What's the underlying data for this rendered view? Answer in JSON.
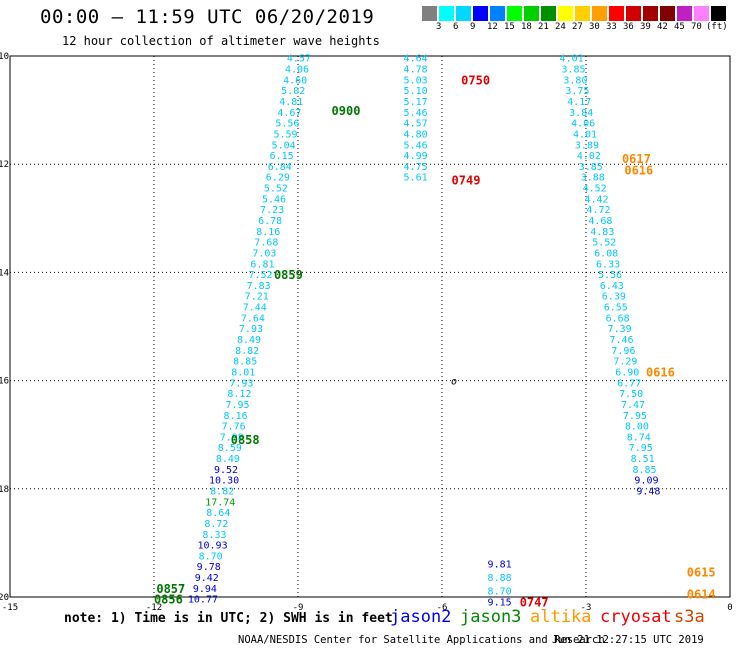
{
  "header": {
    "title": "00:00 – 11:59 UTC 06/20/2019",
    "subtitle": "12 hour collection of altimeter wave heights"
  },
  "scale": {
    "unit_label": "(ft)",
    "colors": [
      "#808080",
      "#00ffff",
      "#00d8ff",
      "#0000ff",
      "#0082ff",
      "#00ff00",
      "#00d000",
      "#009000",
      "#ffff00",
      "#ffd000",
      "#ffa000",
      "#ff0000",
      "#d00000",
      "#a00000",
      "#800000",
      "#c020c0",
      "#ff80ff",
      "#000000"
    ],
    "ticks": [
      "3",
      "6",
      "9",
      "12",
      "15",
      "18",
      "21",
      "24",
      "27",
      "30",
      "33",
      "36",
      "39",
      "42",
      "45",
      "70"
    ]
  },
  "note": "note: 1) Time is in UTC; 2) SWH is in feet",
  "satellites": [
    {
      "name": "jason2",
      "color": "#0000ee"
    },
    {
      "name": "jason3",
      "color": "#008800"
    },
    {
      "name": "altika",
      "color": "#ff9900"
    },
    {
      "name": "cryosat",
      "color": "#ee0000"
    },
    {
      "name": "s3a",
      "color": "#cc4400"
    }
  ],
  "footer": "NOAA/NESDIS Center for Satellite Applications and Research",
  "timestamp": "Jun 21 12:27:15 UTC 2019",
  "colors": {
    "cyan": "#00c8ff",
    "blue": "#0000cc",
    "green": "#007800",
    "lightgreen": "#009a00",
    "red": "#e00000",
    "orange": "#ff8800"
  },
  "chart_data": {
    "type": "scatter",
    "xlim": [
      -15,
      0
    ],
    "ylim": [
      -20,
      -10
    ],
    "xticks": [
      "-15",
      "-12",
      "-9",
      "-6",
      "-3",
      "0"
    ],
    "yticks": [
      "-10",
      "-12",
      "-14",
      "-16",
      "-18",
      "-20"
    ],
    "grid": true,
    "marker_label": "o",
    "marker_point": {
      "lon": -5.75,
      "lat": -16.0
    },
    "tracks": [
      {
        "id": "track-west",
        "points": [
          {
            "lon": -8.98,
            "lat": -10.05,
            "v": "4.57",
            "c": "cyan"
          },
          {
            "lon": -9.02,
            "lat": -10.25,
            "v": "4.06",
            "c": "cyan"
          },
          {
            "lon": -9.06,
            "lat": -10.45,
            "v": "4.60",
            "c": "cyan"
          },
          {
            "lon": -9.1,
            "lat": -10.65,
            "v": "5.02",
            "c": "cyan"
          },
          {
            "lon": -9.14,
            "lat": -10.85,
            "v": "4.81",
            "c": "cyan"
          },
          {
            "lon": -9.18,
            "lat": -11.05,
            "v": "4.67",
            "c": "cyan"
          },
          {
            "lon": -9.22,
            "lat": -11.25,
            "v": "5.56",
            "c": "cyan"
          },
          {
            "lon": -9.26,
            "lat": -11.45,
            "v": "5.59",
            "c": "cyan"
          },
          {
            "lon": -9.3,
            "lat": -11.65,
            "v": "5.04",
            "c": "cyan"
          },
          {
            "lon": -9.34,
            "lat": -11.85,
            "v": "6.15",
            "c": "cyan"
          },
          {
            "lon": -9.38,
            "lat": -12.05,
            "v": "6.84",
            "c": "cyan"
          },
          {
            "lon": -9.42,
            "lat": -12.25,
            "v": "6.29",
            "c": "cyan"
          },
          {
            "lon": -9.46,
            "lat": -12.45,
            "v": "5.52",
            "c": "cyan"
          },
          {
            "lon": -9.5,
            "lat": -12.65,
            "v": "5.46",
            "c": "cyan"
          },
          {
            "lon": -9.54,
            "lat": -12.85,
            "v": "7.23",
            "c": "cyan"
          },
          {
            "lon": -9.58,
            "lat": -13.05,
            "v": "6.78",
            "c": "cyan"
          },
          {
            "lon": -9.62,
            "lat": -13.25,
            "v": "8.16",
            "c": "cyan"
          },
          {
            "lon": -9.66,
            "lat": -13.45,
            "v": "7.68",
            "c": "cyan"
          },
          {
            "lon": -9.7,
            "lat": -13.65,
            "v": "7.03",
            "c": "cyan"
          },
          {
            "lon": -9.74,
            "lat": -13.85,
            "v": "6.81",
            "c": "cyan"
          },
          {
            "lon": -9.78,
            "lat": -14.05,
            "v": "7.52",
            "c": "cyan"
          },
          {
            "lon": -9.82,
            "lat": -14.25,
            "v": "7.83",
            "c": "cyan"
          },
          {
            "lon": -9.86,
            "lat": -14.45,
            "v": "7.21",
            "c": "cyan"
          },
          {
            "lon": -9.9,
            "lat": -14.65,
            "v": "7.44",
            "c": "cyan"
          },
          {
            "lon": -9.94,
            "lat": -14.85,
            "v": "7.64",
            "c": "cyan"
          },
          {
            "lon": -9.98,
            "lat": -15.05,
            "v": "7.93",
            "c": "cyan"
          },
          {
            "lon": -10.02,
            "lat": -15.25,
            "v": "8.49",
            "c": "cyan"
          },
          {
            "lon": -10.06,
            "lat": -15.45,
            "v": "8.82",
            "c": "cyan"
          },
          {
            "lon": -10.1,
            "lat": -15.65,
            "v": "8.85",
            "c": "cyan"
          },
          {
            "lon": -10.14,
            "lat": -15.85,
            "v": "8.01",
            "c": "cyan"
          },
          {
            "lon": -10.18,
            "lat": -16.05,
            "v": "7.93",
            "c": "cyan"
          },
          {
            "lon": -10.22,
            "lat": -16.25,
            "v": "8.12",
            "c": "cyan"
          },
          {
            "lon": -10.26,
            "lat": -16.45,
            "v": "7.95",
            "c": "cyan"
          },
          {
            "lon": -10.3,
            "lat": -16.65,
            "v": "8.16",
            "c": "cyan"
          },
          {
            "lon": -10.34,
            "lat": -16.85,
            "v": "7.76",
            "c": "cyan"
          },
          {
            "lon": -10.38,
            "lat": -17.05,
            "v": "7.98",
            "c": "cyan"
          },
          {
            "lon": -10.42,
            "lat": -17.25,
            "v": "8.59",
            "c": "cyan"
          },
          {
            "lon": -10.46,
            "lat": -17.45,
            "v": "8.49",
            "c": "cyan"
          },
          {
            "lon": -10.5,
            "lat": -17.65,
            "v": "9.52",
            "c": "blue"
          },
          {
            "lon": -10.54,
            "lat": -17.85,
            "v": "10.30",
            "c": "blue"
          },
          {
            "lon": -10.58,
            "lat": -18.05,
            "v": "8.82",
            "c": "cyan"
          },
          {
            "lon": -10.62,
            "lat": -18.25,
            "v": "17.74",
            "c": "lightgreen"
          },
          {
            "lon": -10.66,
            "lat": -18.45,
            "v": "8.64",
            "c": "cyan"
          },
          {
            "lon": -10.7,
            "lat": -18.65,
            "v": "8.72",
            "c": "cyan"
          },
          {
            "lon": -10.74,
            "lat": -18.85,
            "v": "8.33",
            "c": "cyan"
          },
          {
            "lon": -10.78,
            "lat": -19.05,
            "v": "10.93",
            "c": "blue"
          },
          {
            "lon": -10.82,
            "lat": -19.25,
            "v": "8.70",
            "c": "cyan"
          },
          {
            "lon": -10.86,
            "lat": -19.45,
            "v": "9.78",
            "c": "blue"
          },
          {
            "lon": -10.9,
            "lat": -19.65,
            "v": "9.42",
            "c": "blue"
          },
          {
            "lon": -10.94,
            "lat": -19.85,
            "v": "9.94",
            "c": "blue"
          },
          {
            "lon": -10.98,
            "lat": -20.05,
            "v": "10.77",
            "c": "blue"
          }
        ],
        "time_labels": [
          {
            "lon": -8.0,
            "lat": -11.02,
            "t": "0900",
            "c": "green"
          },
          {
            "lon": -9.2,
            "lat": -14.05,
            "t": "0859",
            "c": "green"
          },
          {
            "lon": -10.1,
            "lat": -17.1,
            "t": "0858",
            "c": "green"
          },
          {
            "lon": -11.65,
            "lat": -19.85,
            "t": "0857",
            "c": "green"
          },
          {
            "lon": -11.7,
            "lat": -20.05,
            "t": "0856",
            "c": "green"
          }
        ]
      },
      {
        "id": "track-middle",
        "points": [
          {
            "lon": -6.55,
            "lat": -10.05,
            "v": "4.64",
            "c": "cyan"
          },
          {
            "lon": -6.55,
            "lat": -10.25,
            "v": "4.78",
            "c": "cyan"
          },
          {
            "lon": -6.55,
            "lat": -10.45,
            "v": "5.03",
            "c": "cyan"
          },
          {
            "lon": -6.55,
            "lat": -10.65,
            "v": "5.10",
            "c": "cyan"
          },
          {
            "lon": -6.55,
            "lat": -10.85,
            "v": "5.17",
            "c": "cyan"
          },
          {
            "lon": -6.55,
            "lat": -11.05,
            "v": "5.46",
            "c": "cyan"
          },
          {
            "lon": -6.55,
            "lat": -11.25,
            "v": "4.57",
            "c": "cyan"
          },
          {
            "lon": -6.55,
            "lat": -11.45,
            "v": "4.80",
            "c": "cyan"
          },
          {
            "lon": -6.55,
            "lat": -11.65,
            "v": "5.46",
            "c": "cyan"
          },
          {
            "lon": -6.55,
            "lat": -11.85,
            "v": "4.99",
            "c": "cyan"
          },
          {
            "lon": -6.55,
            "lat": -12.05,
            "v": "4.75",
            "c": "cyan"
          },
          {
            "lon": -6.55,
            "lat": -12.25,
            "v": "5.61",
            "c": "cyan"
          }
        ],
        "time_labels": [
          {
            "lon": -5.3,
            "lat": -10.45,
            "t": "0750",
            "c": "red"
          },
          {
            "lon": -5.5,
            "lat": -12.3,
            "t": "0749",
            "c": "red"
          }
        ]
      },
      {
        "id": "track-middle-south",
        "points": [
          {
            "lon": -4.8,
            "lat": -19.4,
            "v": "9.81",
            "c": "blue"
          },
          {
            "lon": -4.8,
            "lat": -19.65,
            "v": "8.88",
            "c": "cyan"
          },
          {
            "lon": -4.8,
            "lat": -19.9,
            "v": "8.70",
            "c": "cyan"
          },
          {
            "lon": -4.8,
            "lat": -20.1,
            "v": "9.15",
            "c": "blue"
          }
        ],
        "time_labels": [
          {
            "lon": -4.08,
            "lat": -20.1,
            "t": "0747",
            "c": "red"
          }
        ]
      },
      {
        "id": "track-east",
        "points": [
          {
            "lon": -3.3,
            "lat": -10.05,
            "v": "4.01",
            "c": "cyan"
          },
          {
            "lon": -3.26,
            "lat": -10.25,
            "v": "3.85",
            "c": "cyan"
          },
          {
            "lon": -3.22,
            "lat": -10.45,
            "v": "3.80",
            "c": "cyan"
          },
          {
            "lon": -3.18,
            "lat": -10.65,
            "v": "3.75",
            "c": "cyan"
          },
          {
            "lon": -3.14,
            "lat": -10.85,
            "v": "4.17",
            "c": "cyan"
          },
          {
            "lon": -3.1,
            "lat": -11.05,
            "v": "3.84",
            "c": "cyan"
          },
          {
            "lon": -3.06,
            "lat": -11.25,
            "v": "4.06",
            "c": "cyan"
          },
          {
            "lon": -3.02,
            "lat": -11.45,
            "v": "4.01",
            "c": "cyan"
          },
          {
            "lon": -2.98,
            "lat": -11.65,
            "v": "3.89",
            "c": "cyan"
          },
          {
            "lon": -2.94,
            "lat": -11.85,
            "v": "4.02",
            "c": "cyan"
          },
          {
            "lon": -2.9,
            "lat": -12.05,
            "v": "3.85",
            "c": "cyan"
          },
          {
            "lon": -2.86,
            "lat": -12.25,
            "v": "3.88",
            "c": "cyan"
          },
          {
            "lon": -2.82,
            "lat": -12.45,
            "v": "4.52",
            "c": "cyan"
          },
          {
            "lon": -2.78,
            "lat": -12.65,
            "v": "4.42",
            "c": "cyan"
          },
          {
            "lon": -2.74,
            "lat": -12.85,
            "v": "4.72",
            "c": "cyan"
          },
          {
            "lon": -2.7,
            "lat": -13.05,
            "v": "4.68",
            "c": "cyan"
          },
          {
            "lon": -2.66,
            "lat": -13.25,
            "v": "4.83",
            "c": "cyan"
          },
          {
            "lon": -2.62,
            "lat": -13.45,
            "v": "5.52",
            "c": "cyan"
          },
          {
            "lon": -2.58,
            "lat": -13.65,
            "v": "6.08",
            "c": "cyan"
          },
          {
            "lon": -2.54,
            "lat": -13.85,
            "v": "6.33",
            "c": "cyan"
          },
          {
            "lon": -2.5,
            "lat": -14.05,
            "v": "5.56",
            "c": "cyan"
          },
          {
            "lon": -2.46,
            "lat": -14.25,
            "v": "6.43",
            "c": "cyan"
          },
          {
            "lon": -2.42,
            "lat": -14.45,
            "v": "6.39",
            "c": "cyan"
          },
          {
            "lon": -2.38,
            "lat": -14.65,
            "v": "6.55",
            "c": "cyan"
          },
          {
            "lon": -2.34,
            "lat": -14.85,
            "v": "6.68",
            "c": "cyan"
          },
          {
            "lon": -2.3,
            "lat": -15.05,
            "v": "7.39",
            "c": "cyan"
          },
          {
            "lon": -2.26,
            "lat": -15.25,
            "v": "7.46",
            "c": "cyan"
          },
          {
            "lon": -2.22,
            "lat": -15.45,
            "v": "7.96",
            "c": "cyan"
          },
          {
            "lon": -2.18,
            "lat": -15.65,
            "v": "7.29",
            "c": "cyan"
          },
          {
            "lon": -2.14,
            "lat": -15.85,
            "v": "6.90",
            "c": "cyan"
          },
          {
            "lon": -2.1,
            "lat": -16.05,
            "v": "6.77",
            "c": "cyan"
          },
          {
            "lon": -2.06,
            "lat": -16.25,
            "v": "7.50",
            "c": "cyan"
          },
          {
            "lon": -2.02,
            "lat": -16.45,
            "v": "7.47",
            "c": "cyan"
          },
          {
            "lon": -1.98,
            "lat": -16.65,
            "v": "7.95",
            "c": "cyan"
          },
          {
            "lon": -1.94,
            "lat": -16.85,
            "v": "8.00",
            "c": "cyan"
          },
          {
            "lon": -1.9,
            "lat": -17.05,
            "v": "8.74",
            "c": "cyan"
          },
          {
            "lon": -1.86,
            "lat": -17.25,
            "v": "7.95",
            "c": "cyan"
          },
          {
            "lon": -1.82,
            "lat": -17.45,
            "v": "8.51",
            "c": "cyan"
          },
          {
            "lon": -1.78,
            "lat": -17.65,
            "v": "8.85",
            "c": "cyan"
          },
          {
            "lon": -1.74,
            "lat": -17.85,
            "v": "9.09",
            "c": "blue"
          },
          {
            "lon": -1.7,
            "lat": -18.05,
            "v": "9.48",
            "c": "blue"
          }
        ],
        "time_labels": [
          {
            "lon": -1.95,
            "lat": -11.9,
            "t": "0617",
            "c": "orange"
          },
          {
            "lon": -1.9,
            "lat": -12.12,
            "t": "0616",
            "c": "orange"
          },
          {
            "lon": -1.45,
            "lat": -15.85,
            "v2": "",
            "t": "0616",
            "c": "orange"
          },
          {
            "lon": -0.6,
            "lat": -19.55,
            "t": "0615",
            "c": "orange"
          },
          {
            "lon": -0.6,
            "lat": -19.95,
            "t": "0614",
            "c": "orange"
          }
        ]
      }
    ]
  }
}
